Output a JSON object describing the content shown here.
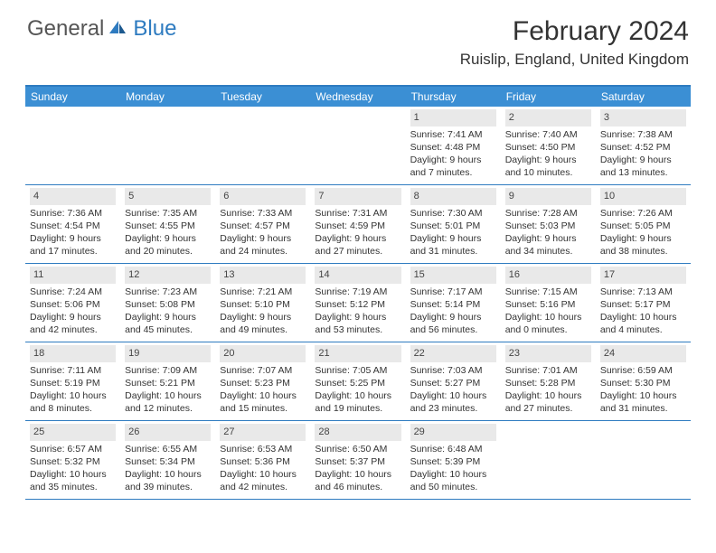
{
  "logo": {
    "general": "General",
    "blue": "Blue"
  },
  "title": "February 2024",
  "location": "Ruislip, England, United Kingdom",
  "dayNames": [
    "Sunday",
    "Monday",
    "Tuesday",
    "Wednesday",
    "Thursday",
    "Friday",
    "Saturday"
  ],
  "colors": {
    "header_bg": "#3b8fd4",
    "border": "#2e7bc0",
    "daynum_bg": "#e9e9e9",
    "text": "#333333",
    "logo_gray": "#555555",
    "logo_blue": "#2e7bc0"
  },
  "weeks": [
    [
      null,
      null,
      null,
      null,
      {
        "n": "1",
        "sr": "Sunrise: 7:41 AM",
        "ss": "Sunset: 4:48 PM",
        "d1": "Daylight: 9 hours",
        "d2": "and 7 minutes."
      },
      {
        "n": "2",
        "sr": "Sunrise: 7:40 AM",
        "ss": "Sunset: 4:50 PM",
        "d1": "Daylight: 9 hours",
        "d2": "and 10 minutes."
      },
      {
        "n": "3",
        "sr": "Sunrise: 7:38 AM",
        "ss": "Sunset: 4:52 PM",
        "d1": "Daylight: 9 hours",
        "d2": "and 13 minutes."
      }
    ],
    [
      {
        "n": "4",
        "sr": "Sunrise: 7:36 AM",
        "ss": "Sunset: 4:54 PM",
        "d1": "Daylight: 9 hours",
        "d2": "and 17 minutes."
      },
      {
        "n": "5",
        "sr": "Sunrise: 7:35 AM",
        "ss": "Sunset: 4:55 PM",
        "d1": "Daylight: 9 hours",
        "d2": "and 20 minutes."
      },
      {
        "n": "6",
        "sr": "Sunrise: 7:33 AM",
        "ss": "Sunset: 4:57 PM",
        "d1": "Daylight: 9 hours",
        "d2": "and 24 minutes."
      },
      {
        "n": "7",
        "sr": "Sunrise: 7:31 AM",
        "ss": "Sunset: 4:59 PM",
        "d1": "Daylight: 9 hours",
        "d2": "and 27 minutes."
      },
      {
        "n": "8",
        "sr": "Sunrise: 7:30 AM",
        "ss": "Sunset: 5:01 PM",
        "d1": "Daylight: 9 hours",
        "d2": "and 31 minutes."
      },
      {
        "n": "9",
        "sr": "Sunrise: 7:28 AM",
        "ss": "Sunset: 5:03 PM",
        "d1": "Daylight: 9 hours",
        "d2": "and 34 minutes."
      },
      {
        "n": "10",
        "sr": "Sunrise: 7:26 AM",
        "ss": "Sunset: 5:05 PM",
        "d1": "Daylight: 9 hours",
        "d2": "and 38 minutes."
      }
    ],
    [
      {
        "n": "11",
        "sr": "Sunrise: 7:24 AM",
        "ss": "Sunset: 5:06 PM",
        "d1": "Daylight: 9 hours",
        "d2": "and 42 minutes."
      },
      {
        "n": "12",
        "sr": "Sunrise: 7:23 AM",
        "ss": "Sunset: 5:08 PM",
        "d1": "Daylight: 9 hours",
        "d2": "and 45 minutes."
      },
      {
        "n": "13",
        "sr": "Sunrise: 7:21 AM",
        "ss": "Sunset: 5:10 PM",
        "d1": "Daylight: 9 hours",
        "d2": "and 49 minutes."
      },
      {
        "n": "14",
        "sr": "Sunrise: 7:19 AM",
        "ss": "Sunset: 5:12 PM",
        "d1": "Daylight: 9 hours",
        "d2": "and 53 minutes."
      },
      {
        "n": "15",
        "sr": "Sunrise: 7:17 AM",
        "ss": "Sunset: 5:14 PM",
        "d1": "Daylight: 9 hours",
        "d2": "and 56 minutes."
      },
      {
        "n": "16",
        "sr": "Sunrise: 7:15 AM",
        "ss": "Sunset: 5:16 PM",
        "d1": "Daylight: 10 hours",
        "d2": "and 0 minutes."
      },
      {
        "n": "17",
        "sr": "Sunrise: 7:13 AM",
        "ss": "Sunset: 5:17 PM",
        "d1": "Daylight: 10 hours",
        "d2": "and 4 minutes."
      }
    ],
    [
      {
        "n": "18",
        "sr": "Sunrise: 7:11 AM",
        "ss": "Sunset: 5:19 PM",
        "d1": "Daylight: 10 hours",
        "d2": "and 8 minutes."
      },
      {
        "n": "19",
        "sr": "Sunrise: 7:09 AM",
        "ss": "Sunset: 5:21 PM",
        "d1": "Daylight: 10 hours",
        "d2": "and 12 minutes."
      },
      {
        "n": "20",
        "sr": "Sunrise: 7:07 AM",
        "ss": "Sunset: 5:23 PM",
        "d1": "Daylight: 10 hours",
        "d2": "and 15 minutes."
      },
      {
        "n": "21",
        "sr": "Sunrise: 7:05 AM",
        "ss": "Sunset: 5:25 PM",
        "d1": "Daylight: 10 hours",
        "d2": "and 19 minutes."
      },
      {
        "n": "22",
        "sr": "Sunrise: 7:03 AM",
        "ss": "Sunset: 5:27 PM",
        "d1": "Daylight: 10 hours",
        "d2": "and 23 minutes."
      },
      {
        "n": "23",
        "sr": "Sunrise: 7:01 AM",
        "ss": "Sunset: 5:28 PM",
        "d1": "Daylight: 10 hours",
        "d2": "and 27 minutes."
      },
      {
        "n": "24",
        "sr": "Sunrise: 6:59 AM",
        "ss": "Sunset: 5:30 PM",
        "d1": "Daylight: 10 hours",
        "d2": "and 31 minutes."
      }
    ],
    [
      {
        "n": "25",
        "sr": "Sunrise: 6:57 AM",
        "ss": "Sunset: 5:32 PM",
        "d1": "Daylight: 10 hours",
        "d2": "and 35 minutes."
      },
      {
        "n": "26",
        "sr": "Sunrise: 6:55 AM",
        "ss": "Sunset: 5:34 PM",
        "d1": "Daylight: 10 hours",
        "d2": "and 39 minutes."
      },
      {
        "n": "27",
        "sr": "Sunrise: 6:53 AM",
        "ss": "Sunset: 5:36 PM",
        "d1": "Daylight: 10 hours",
        "d2": "and 42 minutes."
      },
      {
        "n": "28",
        "sr": "Sunrise: 6:50 AM",
        "ss": "Sunset: 5:37 PM",
        "d1": "Daylight: 10 hours",
        "d2": "and 46 minutes."
      },
      {
        "n": "29",
        "sr": "Sunrise: 6:48 AM",
        "ss": "Sunset: 5:39 PM",
        "d1": "Daylight: 10 hours",
        "d2": "and 50 minutes."
      },
      null,
      null
    ]
  ]
}
